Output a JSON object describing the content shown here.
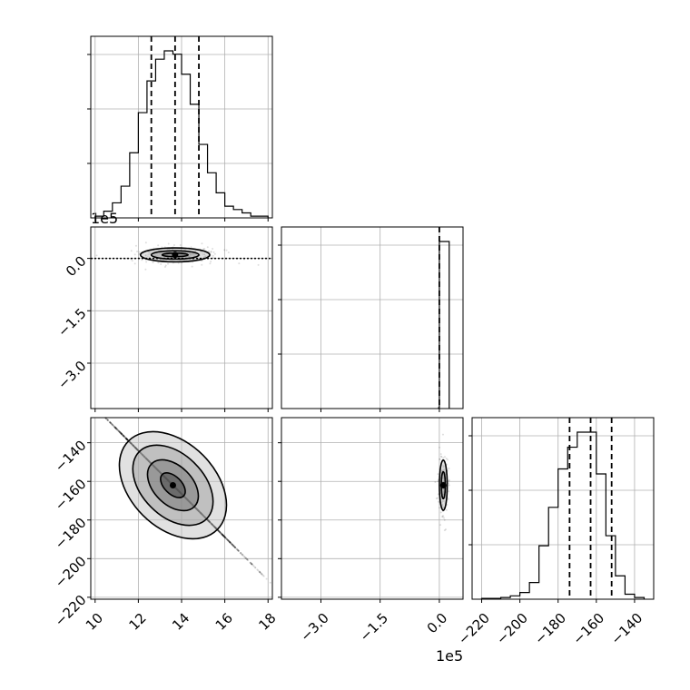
{
  "chart_data": {
    "type": "corner",
    "title": "",
    "grid": true,
    "colors": {
      "line": "#000000",
      "grid": "#b0b0b0",
      "density": "#222222"
    },
    "scale_labels": {
      "panel_1_y": "1e5",
      "bottom_middle_x": "1e5"
    },
    "panels": [
      {
        "name": "hist-param-1",
        "type": "histogram",
        "xlim": [
          9.8,
          18.2
        ],
        "bin_edges": [
          10.0,
          10.4,
          10.8,
          11.2,
          11.6,
          12.0,
          12.4,
          12.8,
          13.2,
          13.6,
          14.0,
          14.4,
          14.8,
          15.2,
          15.6,
          16.0,
          16.4,
          16.8,
          17.2,
          17.6,
          18.0
        ],
        "counts": [
          0.01,
          0.04,
          0.09,
          0.19,
          0.39,
          0.63,
          0.82,
          0.95,
          1.0,
          0.98,
          0.86,
          0.68,
          0.44,
          0.27,
          0.15,
          0.07,
          0.05,
          0.03,
          0.01,
          0.01
        ],
        "quantiles": [
          12.6,
          13.7,
          14.8
        ]
      },
      {
        "name": "hist-param-2",
        "type": "histogram",
        "xlim": [
          -4.0,
          0.6
        ],
        "bin_edges": [
          -0.02,
          0.0,
          0.25
        ],
        "counts": [
          0.005,
          1.0
        ],
        "quantiles": [
          0.0
        ]
      },
      {
        "name": "hist-param-3",
        "type": "histogram",
        "xlim": [
          -225,
          -130
        ],
        "bin_edges": [
          -220,
          -215,
          -210,
          -205,
          -200,
          -195,
          -190,
          -185,
          -180,
          -175,
          -170,
          -165,
          -160,
          -155,
          -150,
          -145,
          -140,
          -135
        ],
        "counts": [
          0.005,
          0.005,
          0.01,
          0.02,
          0.04,
          0.1,
          0.32,
          0.55,
          0.78,
          0.91,
          1.0,
          1.0,
          0.75,
          0.38,
          0.14,
          0.03,
          0.01
        ],
        "quantiles": [
          -174,
          -163,
          -152
        ]
      },
      {
        "name": "scatter-param-1-vs-param-2",
        "type": "2d-density",
        "xlim": [
          9.8,
          18.2
        ],
        "ylim": [
          -4.3,
          0.9
        ],
        "center": [
          13.7,
          0.1
        ],
        "contour_semi_axes": [
          [
            0.6,
            0.05
          ],
          [
            1.1,
            0.12
          ],
          [
            1.6,
            0.2
          ]
        ],
        "line_level": 0.0
      },
      {
        "name": "scatter-param-1-vs-param-3",
        "type": "2d-density",
        "xlim": [
          9.8,
          18.2
        ],
        "ylim": [
          -221,
          -127
        ],
        "center": [
          13.6,
          -162
        ],
        "contour_semi_axes": [
          [
            0.7,
            4.5
          ],
          [
            1.4,
            10.0
          ],
          [
            2.2,
            16.0
          ],
          [
            2.9,
            22.0
          ]
        ],
        "contour_angle_deg": 45
      },
      {
        "name": "scatter-param-2-vs-param-3",
        "type": "2d-density",
        "xlim": [
          -4.0,
          0.6
        ],
        "ylim": [
          -221,
          -127
        ],
        "center": [
          0.1,
          -162
        ],
        "contour_semi_axes": [
          [
            0.05,
            7.0
          ],
          [
            0.1,
            13.0
          ]
        ]
      }
    ],
    "axes": {
      "bottom_left_x_ticks": [
        "10",
        "12",
        "14",
        "16",
        "18"
      ],
      "bottom_middle_x_ticks": [
        "−3.0",
        "−1.5",
        "0.0"
      ],
      "bottom_right_x_ticks": [
        "−220",
        "−200",
        "−180",
        "−160",
        "−140"
      ],
      "middle_left_y_ticks": [
        "0.0",
        "−1.5",
        "−3.0"
      ],
      "bottom_left_y_ticks": [
        "−140",
        "−160",
        "−180",
        "−200",
        "−220"
      ]
    }
  }
}
